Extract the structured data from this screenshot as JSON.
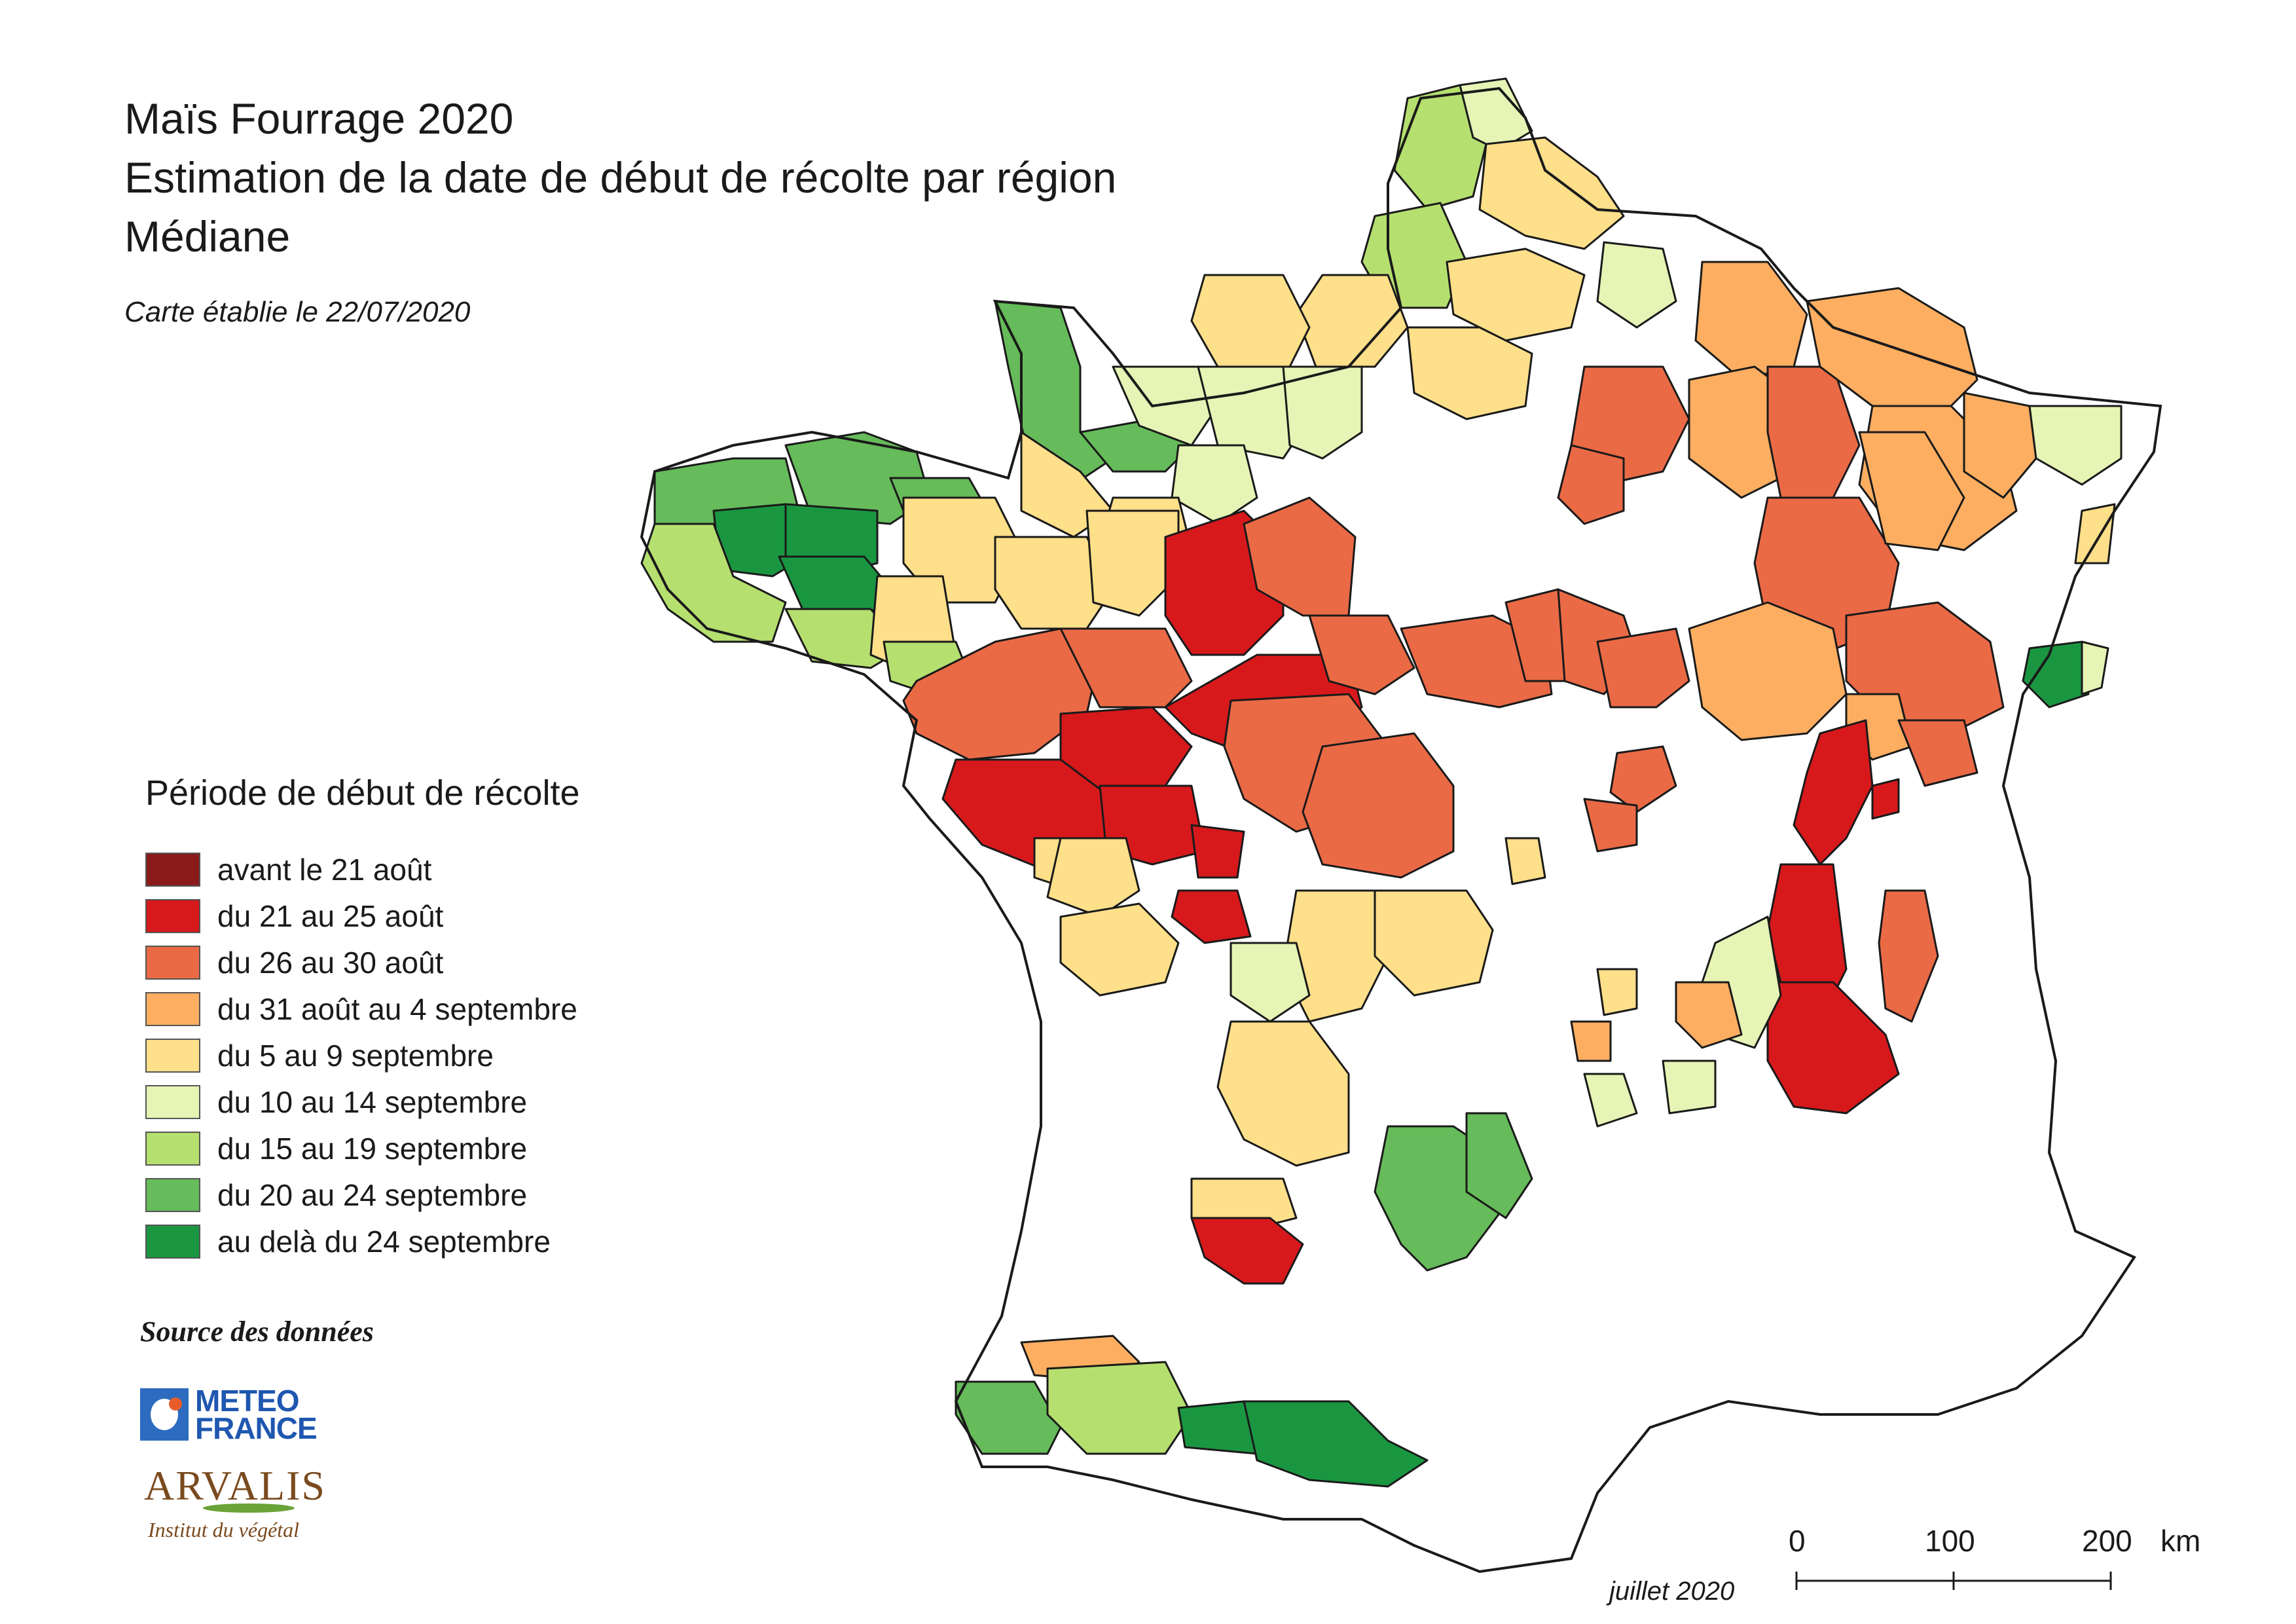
{
  "title": {
    "line1": "Maïs Fourrage 2020",
    "line2": "Estimation de la date de début de récolte par région",
    "line3": "Médiane"
  },
  "subtitle": "Carte établie le 22/07/2020",
  "legend": {
    "title": "Période de début de récolte",
    "items": [
      {
        "label": "avant le 21 août",
        "color": "#8b1a1a"
      },
      {
        "label": "du 21 au 25 août",
        "color": "#d7191c"
      },
      {
        "label": "du 26 au 30 août",
        "color": "#ea6a46"
      },
      {
        "label": "du 31 août au 4 septembre",
        "color": "#fdae61"
      },
      {
        "label": "du 5 au 9 septembre",
        "color": "#fedf8a"
      },
      {
        "label": "du 10 au 14 septembre",
        "color": "#e6f4b5"
      },
      {
        "label": "du 15 au 19 septembre",
        "color": "#b5df6f"
      },
      {
        "label": "du 20 au 24 septembre",
        "color": "#66bb5a"
      },
      {
        "label": "au delà du 24 septembre",
        "color": "#1a9641"
      }
    ]
  },
  "source": {
    "label": "Source des données",
    "meteo_france": {
      "line1": "METEO",
      "line2": "FRANCE"
    },
    "arvalis": {
      "name": "ARVALIS",
      "tagline": "Institut du végétal"
    }
  },
  "date_note": "juillet 2020",
  "scale_bar": {
    "labels": [
      "0",
      "100",
      "200"
    ],
    "unit": "km"
  },
  "map": {
    "no_data_color": "#ffffff",
    "border_color": "#1a1a1a"
  }
}
